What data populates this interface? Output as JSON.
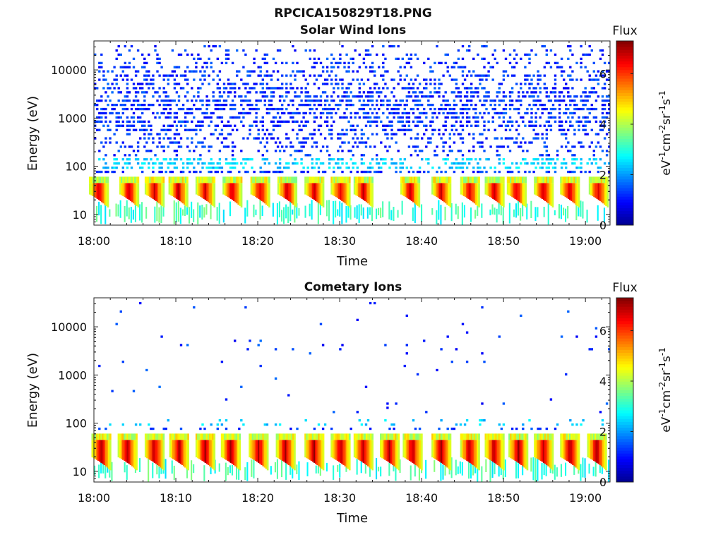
{
  "figure": {
    "suptitle": "RPCICA150829T18.PNG"
  },
  "chart_data": [
    {
      "type": "heatmap",
      "title": "Solar Wind Ions",
      "xlabel": "Time",
      "ylabel": "Energy (eV)",
      "x_range": [
        "18:00",
        "19:03"
      ],
      "x_range_minutes": [
        0,
        63
      ],
      "x_ticks": [
        "18:00",
        "18:10",
        "18:20",
        "18:30",
        "18:40",
        "18:50",
        "19:00"
      ],
      "x_tick_minutes": [
        0,
        10,
        20,
        30,
        40,
        50,
        60
      ],
      "y_scale": "log",
      "y_range": [
        6,
        40000
      ],
      "y_ticks": [
        "10",
        "100",
        "1000",
        "10000"
      ],
      "y_tick_values": [
        10,
        100,
        1000,
        10000
      ],
      "colorbar": {
        "label": "Flux",
        "unit_label": "eV-1cm-2sr-1s-1",
        "range": [
          0,
          7.3
        ],
        "ticks": [
          "0",
          "2",
          "4",
          "6"
        ],
        "tick_values": [
          0,
          2,
          4,
          6
        ],
        "colormap": [
          "#00008f",
          "#0000ff",
          "#0080ff",
          "#00ffff",
          "#80ff80",
          "#ffff00",
          "#ff8000",
          "#ff0000",
          "#800000"
        ]
      },
      "description_of_data": "Sparse blue scatter across 100-30000 eV; intense red/orange bursts near 20-40 eV repeating roughly every 3 minutes",
      "burst_minutes": [
        0.5,
        4.2,
        7.3,
        10.2,
        13.5,
        16.8,
        20.2,
        23.5,
        26.8,
        30.0,
        32.8,
        38.5,
        42.3,
        45.8,
        48.8,
        51.5,
        54.8,
        58.0,
        61.5
      ],
      "burst_energy_range_eV": [
        20,
        45
      ],
      "peak_flux": 7.0
    },
    {
      "type": "heatmap",
      "title": "Cometary Ions",
      "xlabel": "Time",
      "ylabel": "Energy (eV)",
      "x_range": [
        "18:00",
        "19:03"
      ],
      "x_range_minutes": [
        0,
        63
      ],
      "x_ticks": [
        "18:00",
        "18:10",
        "18:20",
        "18:30",
        "18:40",
        "18:50",
        "19:00"
      ],
      "x_tick_minutes": [
        0,
        10,
        20,
        30,
        40,
        50,
        60
      ],
      "y_scale": "log",
      "y_range": [
        6,
        40000
      ],
      "y_ticks": [
        "10",
        "100",
        "1000",
        "10000"
      ],
      "y_tick_values": [
        10,
        100,
        1000,
        10000
      ],
      "colorbar": {
        "label": "Flux",
        "unit_label": "eV-1cm-2sr-1s-1",
        "range": [
          0,
          7.3
        ],
        "ticks": [
          "0",
          "2",
          "4",
          "6"
        ],
        "tick_values": [
          0,
          2,
          4,
          6
        ],
        "colormap": [
          "#00008f",
          "#0000ff",
          "#0080ff",
          "#00ffff",
          "#80ff80",
          "#ffff00",
          "#ff8000",
          "#ff0000",
          "#800000"
        ]
      },
      "description_of_data": "Few isolated blue points above 200 eV; strong red bursts between 15 and 45 eV repeating roughly every 3 minutes",
      "burst_minutes": [
        0.8,
        4.0,
        7.3,
        10.3,
        13.5,
        16.6,
        20.0,
        23.3,
        26.8,
        30.0,
        32.8,
        36.0,
        38.8,
        42.3,
        45.8,
        48.8,
        51.7,
        54.8,
        58.0,
        61.3
      ],
      "burst_energy_range_eV": [
        15,
        45
      ],
      "peak_flux": 7.2
    }
  ]
}
